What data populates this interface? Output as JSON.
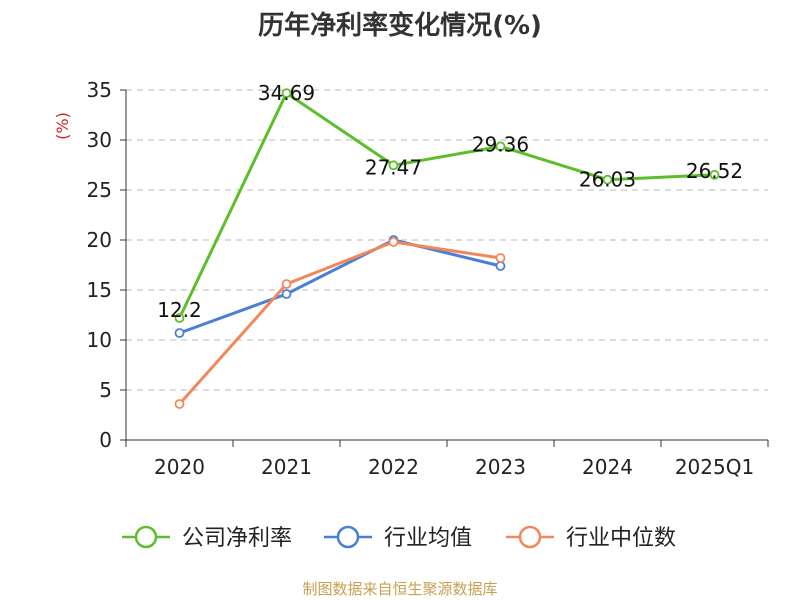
{
  "chart_data": {
    "type": "line",
    "title": "历年净利率变化情况(%)",
    "ylabel": "(%)",
    "xlabel": "",
    "categories": [
      "2020",
      "2021",
      "2022",
      "2023",
      "2024",
      "2025Q1"
    ],
    "ylim": [
      0,
      35
    ],
    "yticks": [
      0,
      5,
      10,
      15,
      20,
      25,
      30,
      35
    ],
    "grid": true,
    "legend_position": "bottom",
    "series": [
      {
        "name": "公司净利率",
        "color": "#5cbf2a",
        "values": [
          12.2,
          34.69,
          27.47,
          29.36,
          26.03,
          26.52
        ],
        "labels": [
          "12.2",
          "34.69",
          "27.47",
          "29.36",
          "26.03",
          "26.52"
        ]
      },
      {
        "name": "行业均值",
        "color": "#4a7fd8",
        "values": [
          10.7,
          14.6,
          20.0,
          17.4,
          null,
          null
        ]
      },
      {
        "name": "行业中位数",
        "color": "#f4875a",
        "values": [
          3.6,
          15.6,
          19.8,
          18.2,
          null,
          null
        ]
      }
    ],
    "source": "制图数据来自恒生聚源数据库"
  },
  "colors": {
    "ylabel": "#cc2222",
    "source": "#c8a050",
    "axis": "#333333",
    "grid": "#bbbbbb"
  }
}
